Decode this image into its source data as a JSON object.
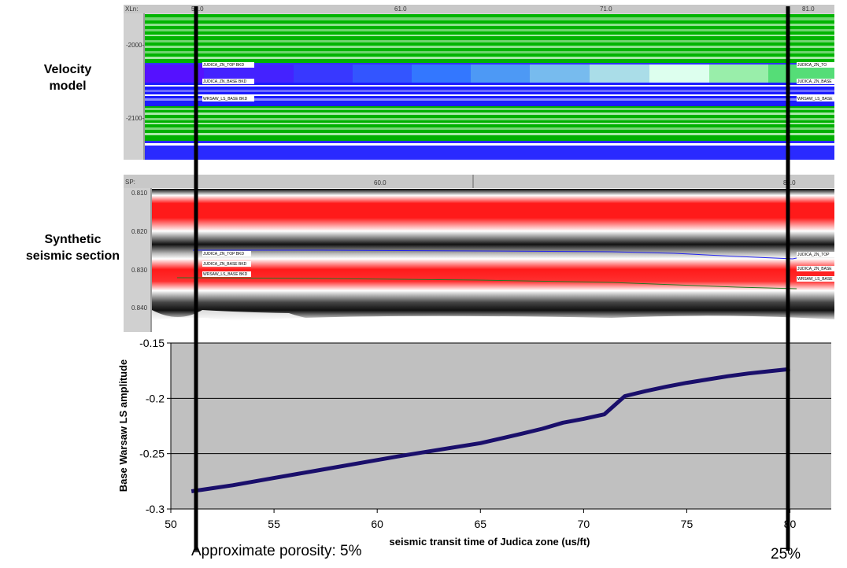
{
  "velocity_panel": {
    "label_line1": "Velocity",
    "label_line2": "model",
    "header_prefix": "XLn:",
    "header_ticks": [
      "51.0",
      "61.0",
      "71.0",
      "81.0"
    ],
    "depth_ticks": [
      "-2000-",
      "-2100-"
    ],
    "horizons": [
      "JUDICA_ZN_TOP BKD",
      "JUDICA_ZN_BASE BKD",
      "WRSAW_LS_BASE BKD"
    ],
    "horizons_right": [
      "JUDICA_ZN_TO",
      "JUDICA_ZN_BASE",
      "WRSAW_LS_BASE"
    ]
  },
  "seismic_panel": {
    "label_line1": "Synthetic",
    "label_line2": "seismic section",
    "header_prefix": "SP:",
    "header_ticks": [
      "60.0",
      "80.0"
    ],
    "time_ticks": [
      "0.810",
      "0.820",
      "0.830",
      "0.840"
    ],
    "horizons": [
      "JUDICA_ZN_TOP BKD",
      "JUDICA_ZN_BASE BKD",
      "WRSAW_LS_BASE BKD"
    ],
    "horizons_right": [
      "JUDICA_ZN_TOP",
      "JUDICA_ZN_BASE",
      "WRSAW_LS_BASE"
    ]
  },
  "colors": {
    "plot_bg": "#c0c0c0",
    "line": "#1a0f6b",
    "seismic_red": "#ff1a1a",
    "vel_blue": "#2626ff",
    "vel_green": "#00b000"
  },
  "chart_data": {
    "type": "line",
    "title": "",
    "xlabel": "seismic transit time of Judica zone (us/ft)",
    "ylabel": "Base Warsaw LS amplitude",
    "xlim": [
      50,
      82
    ],
    "ylim": [
      -0.3,
      -0.15
    ],
    "x_ticks": [
      "50",
      "55",
      "60",
      "65",
      "70",
      "75",
      "80"
    ],
    "y_ticks": [
      "-0.15",
      "-0.2",
      "-0.25",
      "-0.3"
    ],
    "grid": true,
    "x": [
      51,
      53,
      55,
      57,
      59,
      61,
      63,
      65,
      67,
      68,
      69,
      70,
      71,
      72,
      73,
      74,
      75,
      76,
      77,
      78,
      79,
      80
    ],
    "values": [
      -0.284,
      -0.2785,
      -0.272,
      -0.2655,
      -0.259,
      -0.2525,
      -0.2465,
      -0.2405,
      -0.232,
      -0.2275,
      -0.222,
      -0.2185,
      -0.2145,
      -0.198,
      -0.1935,
      -0.1895,
      -0.186,
      -0.183,
      -0.18,
      -0.1775,
      -0.1755,
      -0.1735
    ]
  },
  "annotations": {
    "porosity_left": "Approximate porosity: 5%",
    "porosity_right": "25%"
  }
}
